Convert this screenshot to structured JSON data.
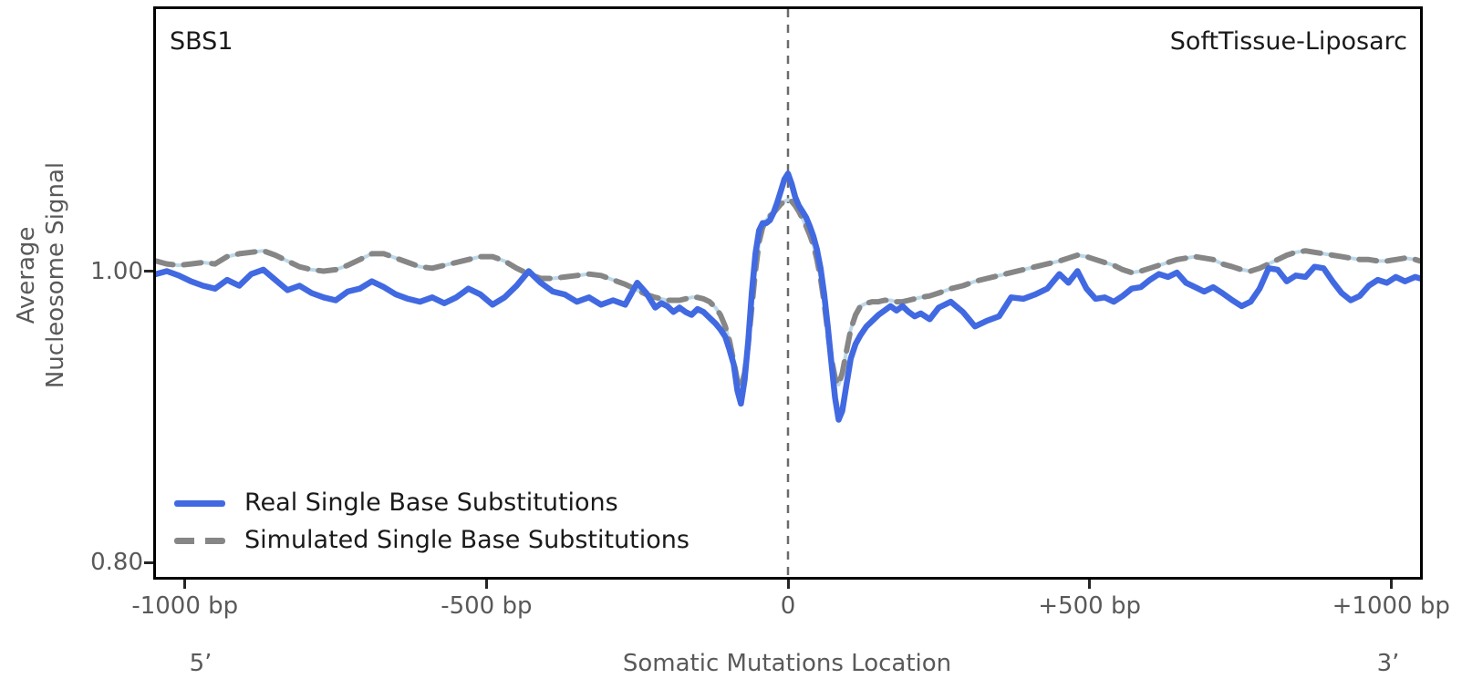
{
  "chart_data": {
    "type": "line",
    "title_left": "SBS1",
    "title_right": "SoftTissue-Liposarc",
    "xlabel": "Somatic Mutations Location",
    "ylabel_lines": [
      "Average",
      "Nucleosome Signal"
    ],
    "end_labels": {
      "left": "5’",
      "right": "3’"
    },
    "xlim": [
      -1048,
      1048
    ],
    "ylim": [
      0.79,
      1.18
    ],
    "x_ticks": [
      {
        "x": -1000,
        "label": "-1000 bp"
      },
      {
        "x": -500,
        "label": "-500 bp"
      },
      {
        "x": 0,
        "label": "0"
      },
      {
        "x": 500,
        "label": "+500 bp"
      },
      {
        "x": 1000,
        "label": "+1000 bp"
      }
    ],
    "y_ticks": [
      {
        "y": 1.0,
        "label": "1.00"
      },
      {
        "y": 0.8,
        "label": "0.80"
      }
    ],
    "vline_x": 0,
    "grid": false,
    "legend_position": "lower-left",
    "colors": {
      "real": "#4169E1",
      "simulated": "#868686",
      "simulated_underlay": "#BCD9EA",
      "vline": "#6B6B6B",
      "tick": "#262626",
      "label_gray": "#595959",
      "title_black": "#1A1A1A"
    },
    "legend": [
      {
        "label": "Real Single Base Substitutions",
        "style": "solid",
        "color": "#4169E1"
      },
      {
        "label": "Simulated Single Base Substitutions",
        "style": "dashed",
        "color": "#868686"
      }
    ],
    "columns": [
      "position_bp",
      "real_sbs",
      "simulated_sbs"
    ],
    "points": [
      [
        -1048,
        0.998,
        1.007
      ],
      [
        -1030,
        1.0,
        1.005
      ],
      [
        -1010,
        0.997,
        1.004
      ],
      [
        -990,
        0.993,
        1.005
      ],
      [
        -970,
        0.99,
        1.006
      ],
      [
        -950,
        0.988,
        1.005
      ],
      [
        -930,
        0.994,
        1.01
      ],
      [
        -910,
        0.99,
        1.012
      ],
      [
        -890,
        0.998,
        1.013
      ],
      [
        -870,
        1.001,
        1.014
      ],
      [
        -850,
        0.994,
        1.011
      ],
      [
        -830,
        0.987,
        1.007
      ],
      [
        -810,
        0.99,
        1.003
      ],
      [
        -790,
        0.985,
        1.001
      ],
      [
        -770,
        0.982,
        1.0
      ],
      [
        -750,
        0.98,
        1.001
      ],
      [
        -730,
        0.986,
        1.004
      ],
      [
        -710,
        0.988,
        1.008
      ],
      [
        -690,
        0.993,
        1.012
      ],
      [
        -670,
        0.989,
        1.012
      ],
      [
        -650,
        0.984,
        1.009
      ],
      [
        -630,
        0.981,
        1.006
      ],
      [
        -610,
        0.979,
        1.003
      ],
      [
        -590,
        0.982,
        1.002
      ],
      [
        -570,
        0.978,
        1.004
      ],
      [
        -550,
        0.982,
        1.006
      ],
      [
        -530,
        0.988,
        1.008
      ],
      [
        -510,
        0.984,
        1.01
      ],
      [
        -490,
        0.977,
        1.01
      ],
      [
        -470,
        0.982,
        1.007
      ],
      [
        -450,
        0.99,
        1.002
      ],
      [
        -430,
        1.0,
        0.998
      ],
      [
        -410,
        0.992,
        0.995
      ],
      [
        -390,
        0.986,
        0.995
      ],
      [
        -370,
        0.984,
        0.996
      ],
      [
        -350,
        0.979,
        0.997
      ],
      [
        -330,
        0.982,
        0.998
      ],
      [
        -310,
        0.977,
        0.997
      ],
      [
        -290,
        0.98,
        0.994
      ],
      [
        -270,
        0.977,
        0.991
      ],
      [
        -250,
        0.992,
        0.987
      ],
      [
        -235,
        0.985,
        0.984
      ],
      [
        -220,
        0.975,
        0.982
      ],
      [
        -210,
        0.978,
        0.981
      ],
      [
        -200,
        0.976,
        0.98
      ],
      [
        -190,
        0.972,
        0.98
      ],
      [
        -180,
        0.975,
        0.98
      ],
      [
        -170,
        0.972,
        0.981
      ],
      [
        -160,
        0.97,
        0.982
      ],
      [
        -150,
        0.974,
        0.982
      ],
      [
        -140,
        0.972,
        0.981
      ],
      [
        -130,
        0.968,
        0.979
      ],
      [
        -120,
        0.964,
        0.975
      ],
      [
        -112,
        0.96,
        0.97
      ],
      [
        -104,
        0.955,
        0.962
      ],
      [
        -97,
        0.946,
        0.952
      ],
      [
        -90,
        0.936,
        0.938
      ],
      [
        -84,
        0.918,
        0.925
      ],
      [
        -78,
        0.909,
        0.92
      ],
      [
        -72,
        0.925,
        0.93
      ],
      [
        -66,
        0.952,
        0.95
      ],
      [
        -60,
        0.985,
        0.975
      ],
      [
        -54,
        1.012,
        1.0
      ],
      [
        -48,
        1.028,
        1.02
      ],
      [
        -42,
        1.033,
        1.03
      ],
      [
        -36,
        1.033,
        1.035
      ],
      [
        -30,
        1.035,
        1.038
      ],
      [
        -24,
        1.04,
        1.04
      ],
      [
        -18,
        1.047,
        1.043
      ],
      [
        -12,
        1.055,
        1.046
      ],
      [
        -6,
        1.063,
        1.048
      ],
      [
        0,
        1.067,
        1.049
      ],
      [
        6,
        1.06,
        1.048
      ],
      [
        12,
        1.051,
        1.045
      ],
      [
        18,
        1.045,
        1.041
      ],
      [
        24,
        1.041,
        1.036
      ],
      [
        30,
        1.037,
        1.031
      ],
      [
        36,
        1.031,
        1.025
      ],
      [
        42,
        1.024,
        1.018
      ],
      [
        48,
        1.015,
        1.008
      ],
      [
        54,
        1.002,
        0.995
      ],
      [
        60,
        0.984,
        0.978
      ],
      [
        66,
        0.962,
        0.958
      ],
      [
        72,
        0.937,
        0.94
      ],
      [
        78,
        0.913,
        0.927
      ],
      [
        84,
        0.898,
        0.922
      ],
      [
        90,
        0.904,
        0.93
      ],
      [
        97,
        0.922,
        0.945
      ],
      [
        104,
        0.94,
        0.96
      ],
      [
        112,
        0.95,
        0.97
      ],
      [
        120,
        0.956,
        0.976
      ],
      [
        130,
        0.962,
        0.978
      ],
      [
        140,
        0.966,
        0.979
      ],
      [
        150,
        0.97,
        0.979
      ],
      [
        160,
        0.973,
        0.98
      ],
      [
        170,
        0.976,
        0.98
      ],
      [
        180,
        0.973,
        0.979
      ],
      [
        190,
        0.976,
        0.979
      ],
      [
        200,
        0.972,
        0.98
      ],
      [
        210,
        0.969,
        0.981
      ],
      [
        220,
        0.971,
        0.982
      ],
      [
        235,
        0.967,
        0.983
      ],
      [
        250,
        0.975,
        0.985
      ],
      [
        270,
        0.979,
        0.988
      ],
      [
        290,
        0.972,
        0.99
      ],
      [
        310,
        0.962,
        0.993
      ],
      [
        330,
        0.966,
        0.995
      ],
      [
        350,
        0.969,
        0.997
      ],
      [
        370,
        0.982,
        0.999
      ],
      [
        390,
        0.981,
        1.001
      ],
      [
        410,
        0.984,
        1.003
      ],
      [
        430,
        0.988,
        1.005
      ],
      [
        450,
        0.998,
        1.007
      ],
      [
        465,
        0.992,
        1.009
      ],
      [
        480,
        1.0,
        1.011
      ],
      [
        495,
        0.988,
        1.01
      ],
      [
        510,
        0.981,
        1.008
      ],
      [
        525,
        0.982,
        1.006
      ],
      [
        540,
        0.979,
        1.004
      ],
      [
        555,
        0.983,
        1.001
      ],
      [
        570,
        0.988,
        0.999
      ],
      [
        585,
        0.989,
        1.0
      ],
      [
        600,
        0.994,
        1.002
      ],
      [
        615,
        0.998,
        1.004
      ],
      [
        630,
        0.996,
        1.006
      ],
      [
        645,
        0.999,
        1.008
      ],
      [
        660,
        0.992,
        1.009
      ],
      [
        675,
        0.989,
        1.01
      ],
      [
        690,
        0.986,
        1.009
      ],
      [
        705,
        0.989,
        1.008
      ],
      [
        720,
        0.985,
        1.005
      ],
      [
        737,
        0.98,
        1.003
      ],
      [
        752,
        0.976,
        1.001
      ],
      [
        767,
        0.979,
        1.0
      ],
      [
        782,
        0.988,
        1.002
      ],
      [
        797,
        1.002,
        1.005
      ],
      [
        812,
        1.001,
        1.008
      ],
      [
        827,
        0.993,
        1.011
      ],
      [
        842,
        0.997,
        1.013
      ],
      [
        858,
        0.996,
        1.014
      ],
      [
        873,
        1.003,
        1.013
      ],
      [
        888,
        1.002,
        1.012
      ],
      [
        903,
        0.993,
        1.011
      ],
      [
        918,
        0.985,
        1.01
      ],
      [
        933,
        0.98,
        1.009
      ],
      [
        948,
        0.983,
        1.008
      ],
      [
        963,
        0.99,
        1.008
      ],
      [
        978,
        0.994,
        1.007
      ],
      [
        993,
        0.992,
        1.007
      ],
      [
        1008,
        0.996,
        1.008
      ],
      [
        1023,
        0.993,
        1.009
      ],
      [
        1040,
        0.996,
        1.008
      ],
      [
        1048,
        0.995,
        1.007
      ]
    ]
  }
}
